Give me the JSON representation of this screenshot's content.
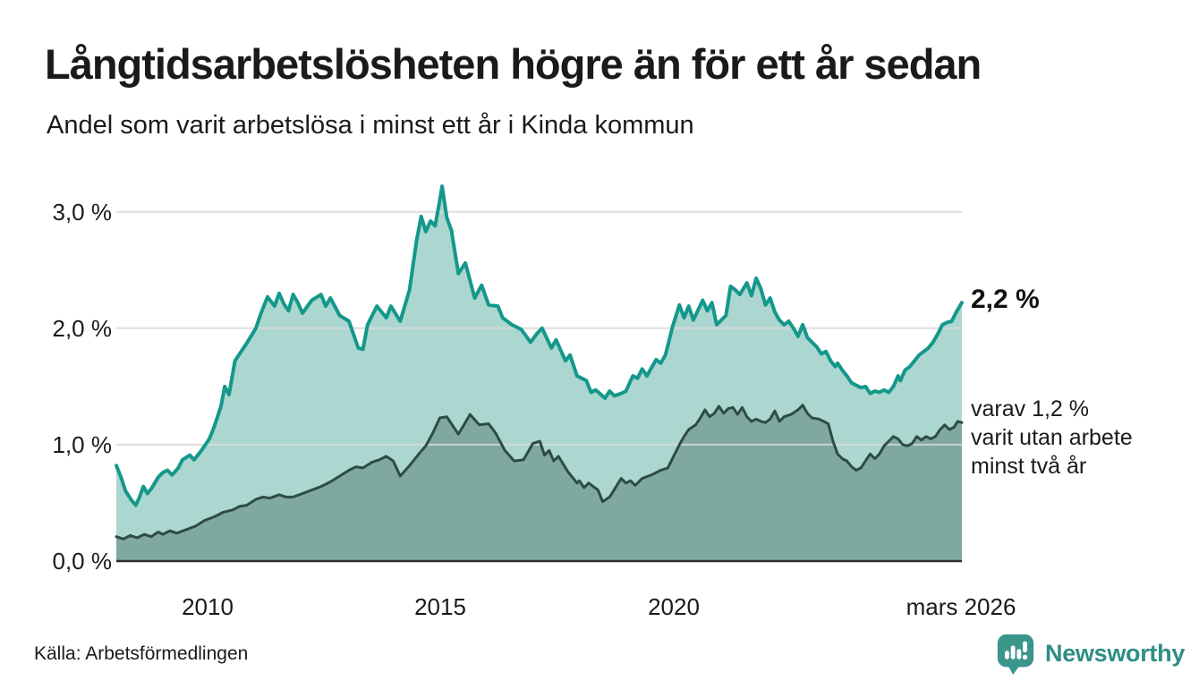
{
  "header": {
    "title": "Långtidsarbetslösheten högre än för ett år sedan",
    "subtitle": "Andel som varit arbetslösa i minst ett år i Kinda kommun"
  },
  "chart_data": {
    "type": "area",
    "title": "Långtidsarbetslösheten högre än för ett år sedan",
    "subtitle": "Andel som varit arbetslösa i minst ett år i Kinda kommun",
    "unit": "%",
    "grid": true,
    "x_axis": {
      "range": [
        2008.0,
        2026.17
      ],
      "ticks": [
        {
          "label": "2010",
          "year": 2010
        },
        {
          "label": "2015",
          "year": 2015
        },
        {
          "label": "2020",
          "year": 2020
        },
        {
          "label": "mars 2026",
          "year": 2026.17
        }
      ]
    },
    "y_axis": {
      "range": [
        0,
        3.4
      ],
      "ticks": [
        {
          "label": "3,0 %",
          "value": 3.0
        },
        {
          "label": "2,0 %",
          "value": 2.0
        },
        {
          "label": "1,0 %",
          "value": 1.0
        },
        {
          "label": "0,0 %",
          "value": 0.0
        }
      ]
    },
    "series": [
      {
        "name": "Andel arbetslösa minst ett år",
        "line_color": "#14988b",
        "fill_color": "#abd7d0",
        "line_width": 4,
        "points": [
          [
            2008.0,
            0.82
          ],
          [
            2008.1,
            0.72
          ],
          [
            2008.2,
            0.6
          ],
          [
            2008.33,
            0.52
          ],
          [
            2008.42,
            0.48
          ],
          [
            2008.5,
            0.55
          ],
          [
            2008.58,
            0.64
          ],
          [
            2008.67,
            0.58
          ],
          [
            2008.75,
            0.62
          ],
          [
            2008.9,
            0.72
          ],
          [
            2009.0,
            0.76
          ],
          [
            2009.1,
            0.78
          ],
          [
            2009.2,
            0.74
          ],
          [
            2009.33,
            0.8
          ],
          [
            2009.42,
            0.87
          ],
          [
            2009.58,
            0.91
          ],
          [
            2009.67,
            0.87
          ],
          [
            2009.83,
            0.95
          ],
          [
            2010.0,
            1.05
          ],
          [
            2010.1,
            1.15
          ],
          [
            2010.25,
            1.33
          ],
          [
            2010.33,
            1.5
          ],
          [
            2010.42,
            1.43
          ],
          [
            2010.55,
            1.72
          ],
          [
            2010.65,
            1.78
          ],
          [
            2010.8,
            1.87
          ],
          [
            2011.0,
            2.0
          ],
          [
            2011.1,
            2.12
          ],
          [
            2011.25,
            2.27
          ],
          [
            2011.4,
            2.19
          ],
          [
            2011.5,
            2.3
          ],
          [
            2011.6,
            2.21
          ],
          [
            2011.7,
            2.15
          ],
          [
            2011.8,
            2.29
          ],
          [
            2011.9,
            2.22
          ],
          [
            2012.0,
            2.13
          ],
          [
            2012.2,
            2.24
          ],
          [
            2012.4,
            2.29
          ],
          [
            2012.5,
            2.19
          ],
          [
            2012.6,
            2.26
          ],
          [
            2012.8,
            2.11
          ],
          [
            2013.0,
            2.06
          ],
          [
            2013.2,
            1.83
          ],
          [
            2013.3,
            1.82
          ],
          [
            2013.4,
            2.03
          ],
          [
            2013.6,
            2.19
          ],
          [
            2013.8,
            2.09
          ],
          [
            2013.9,
            2.19
          ],
          [
            2014.1,
            2.06
          ],
          [
            2014.3,
            2.33
          ],
          [
            2014.45,
            2.75
          ],
          [
            2014.55,
            2.96
          ],
          [
            2014.65,
            2.83
          ],
          [
            2014.75,
            2.92
          ],
          [
            2014.85,
            2.88
          ],
          [
            2014.95,
            3.1
          ],
          [
            2015.0,
            3.22
          ],
          [
            2015.1,
            2.95
          ],
          [
            2015.2,
            2.84
          ],
          [
            2015.35,
            2.47
          ],
          [
            2015.5,
            2.56
          ],
          [
            2015.7,
            2.26
          ],
          [
            2015.85,
            2.37
          ],
          [
            2016.0,
            2.2
          ],
          [
            2016.2,
            2.19
          ],
          [
            2016.3,
            2.09
          ],
          [
            2016.5,
            2.03
          ],
          [
            2016.7,
            1.99
          ],
          [
            2016.9,
            1.88
          ],
          [
            2017.05,
            1.96
          ],
          [
            2017.15,
            2.0
          ],
          [
            2017.35,
            1.83
          ],
          [
            2017.45,
            1.9
          ],
          [
            2017.65,
            1.72
          ],
          [
            2017.75,
            1.77
          ],
          [
            2017.9,
            1.59
          ],
          [
            2018.1,
            1.55
          ],
          [
            2018.2,
            1.45
          ],
          [
            2018.3,
            1.47
          ],
          [
            2018.5,
            1.4
          ],
          [
            2018.6,
            1.46
          ],
          [
            2018.7,
            1.42
          ],
          [
            2018.85,
            1.44
          ],
          [
            2018.95,
            1.46
          ],
          [
            2019.1,
            1.59
          ],
          [
            2019.2,
            1.57
          ],
          [
            2019.3,
            1.65
          ],
          [
            2019.4,
            1.59
          ],
          [
            2019.6,
            1.73
          ],
          [
            2019.7,
            1.7
          ],
          [
            2019.8,
            1.77
          ],
          [
            2019.95,
            2.01
          ],
          [
            2020.1,
            2.2
          ],
          [
            2020.2,
            2.09
          ],
          [
            2020.3,
            2.19
          ],
          [
            2020.4,
            2.07
          ],
          [
            2020.6,
            2.24
          ],
          [
            2020.7,
            2.15
          ],
          [
            2020.8,
            2.22
          ],
          [
            2020.9,
            2.03
          ],
          [
            2021.1,
            2.11
          ],
          [
            2021.2,
            2.36
          ],
          [
            2021.3,
            2.33
          ],
          [
            2021.4,
            2.29
          ],
          [
            2021.55,
            2.39
          ],
          [
            2021.65,
            2.28
          ],
          [
            2021.75,
            2.43
          ],
          [
            2021.85,
            2.34
          ],
          [
            2021.95,
            2.2
          ],
          [
            2022.05,
            2.26
          ],
          [
            2022.15,
            2.14
          ],
          [
            2022.25,
            2.07
          ],
          [
            2022.35,
            2.03
          ],
          [
            2022.45,
            2.06
          ],
          [
            2022.55,
            2.0
          ],
          [
            2022.65,
            1.93
          ],
          [
            2022.75,
            2.03
          ],
          [
            2022.85,
            1.92
          ],
          [
            2022.95,
            1.88
          ],
          [
            2023.05,
            1.84
          ],
          [
            2023.15,
            1.78
          ],
          [
            2023.25,
            1.8
          ],
          [
            2023.35,
            1.72
          ],
          [
            2023.45,
            1.67
          ],
          [
            2023.5,
            1.7
          ],
          [
            2023.6,
            1.64
          ],
          [
            2023.7,
            1.59
          ],
          [
            2023.8,
            1.53
          ],
          [
            2023.9,
            1.51
          ],
          [
            2024.0,
            1.49
          ],
          [
            2024.1,
            1.5
          ],
          [
            2024.2,
            1.44
          ],
          [
            2024.3,
            1.46
          ],
          [
            2024.4,
            1.45
          ],
          [
            2024.5,
            1.47
          ],
          [
            2024.6,
            1.45
          ],
          [
            2024.7,
            1.5
          ],
          [
            2024.8,
            1.59
          ],
          [
            2024.85,
            1.55
          ],
          [
            2024.95,
            1.64
          ],
          [
            2025.05,
            1.67
          ],
          [
            2025.15,
            1.72
          ],
          [
            2025.25,
            1.77
          ],
          [
            2025.35,
            1.8
          ],
          [
            2025.45,
            1.83
          ],
          [
            2025.55,
            1.88
          ],
          [
            2025.65,
            1.95
          ],
          [
            2025.75,
            2.03
          ],
          [
            2025.85,
            2.05
          ],
          [
            2025.95,
            2.06
          ],
          [
            2026.05,
            2.14
          ],
          [
            2026.17,
            2.22
          ]
        ]
      },
      {
        "name": "Andel utan arbete minst två år",
        "line_color": "#2e4b46",
        "fill_color": "#7fa9a0",
        "line_width": 3,
        "points": [
          [
            2008.0,
            0.21
          ],
          [
            2008.15,
            0.19
          ],
          [
            2008.3,
            0.22
          ],
          [
            2008.45,
            0.2
          ],
          [
            2008.6,
            0.23
          ],
          [
            2008.75,
            0.21
          ],
          [
            2008.9,
            0.25
          ],
          [
            2009.0,
            0.23
          ],
          [
            2009.15,
            0.26
          ],
          [
            2009.3,
            0.24
          ],
          [
            2009.5,
            0.27
          ],
          [
            2009.7,
            0.3
          ],
          [
            2009.9,
            0.35
          ],
          [
            2010.1,
            0.38
          ],
          [
            2010.3,
            0.42
          ],
          [
            2010.5,
            0.44
          ],
          [
            2010.65,
            0.47
          ],
          [
            2010.8,
            0.48
          ],
          [
            2011.0,
            0.53
          ],
          [
            2011.15,
            0.55
          ],
          [
            2011.3,
            0.54
          ],
          [
            2011.5,
            0.57
          ],
          [
            2011.65,
            0.55
          ],
          [
            2011.8,
            0.55
          ],
          [
            2012.0,
            0.58
          ],
          [
            2012.2,
            0.61
          ],
          [
            2012.4,
            0.64
          ],
          [
            2012.6,
            0.68
          ],
          [
            2012.8,
            0.73
          ],
          [
            2013.0,
            0.78
          ],
          [
            2013.15,
            0.81
          ],
          [
            2013.3,
            0.8
          ],
          [
            2013.5,
            0.85
          ],
          [
            2013.65,
            0.87
          ],
          [
            2013.8,
            0.9
          ],
          [
            2013.95,
            0.86
          ],
          [
            2014.1,
            0.73
          ],
          [
            2014.3,
            0.82
          ],
          [
            2014.5,
            0.92
          ],
          [
            2014.65,
            0.99
          ],
          [
            2014.8,
            1.1
          ],
          [
            2014.95,
            1.23
          ],
          [
            2015.1,
            1.24
          ],
          [
            2015.35,
            1.09
          ],
          [
            2015.6,
            1.26
          ],
          [
            2015.8,
            1.17
          ],
          [
            2016.0,
            1.18
          ],
          [
            2016.15,
            1.1
          ],
          [
            2016.35,
            0.95
          ],
          [
            2016.55,
            0.86
          ],
          [
            2016.75,
            0.87
          ],
          [
            2016.95,
            1.01
          ],
          [
            2017.1,
            1.03
          ],
          [
            2017.2,
            0.91
          ],
          [
            2017.3,
            0.95
          ],
          [
            2017.4,
            0.86
          ],
          [
            2017.5,
            0.9
          ],
          [
            2017.7,
            0.77
          ],
          [
            2017.9,
            0.67
          ],
          [
            2017.95,
            0.69
          ],
          [
            2018.05,
            0.63
          ],
          [
            2018.15,
            0.67
          ],
          [
            2018.35,
            0.61
          ],
          [
            2018.45,
            0.51
          ],
          [
            2018.6,
            0.55
          ],
          [
            2018.85,
            0.71
          ],
          [
            2018.95,
            0.67
          ],
          [
            2019.05,
            0.69
          ],
          [
            2019.15,
            0.65
          ],
          [
            2019.3,
            0.71
          ],
          [
            2019.5,
            0.74
          ],
          [
            2019.7,
            0.78
          ],
          [
            2019.85,
            0.8
          ],
          [
            2020.0,
            0.92
          ],
          [
            2020.1,
            1.0
          ],
          [
            2020.2,
            1.07
          ],
          [
            2020.3,
            1.13
          ],
          [
            2020.45,
            1.17
          ],
          [
            2020.55,
            1.23
          ],
          [
            2020.65,
            1.3
          ],
          [
            2020.75,
            1.24
          ],
          [
            2020.85,
            1.27
          ],
          [
            2020.95,
            1.33
          ],
          [
            2021.05,
            1.27
          ],
          [
            2021.15,
            1.31
          ],
          [
            2021.25,
            1.32
          ],
          [
            2021.35,
            1.26
          ],
          [
            2021.45,
            1.32
          ],
          [
            2021.55,
            1.24
          ],
          [
            2021.65,
            1.2
          ],
          [
            2021.75,
            1.22
          ],
          [
            2021.85,
            1.2
          ],
          [
            2021.95,
            1.19
          ],
          [
            2022.05,
            1.22
          ],
          [
            2022.15,
            1.29
          ],
          [
            2022.25,
            1.2
          ],
          [
            2022.35,
            1.24
          ],
          [
            2022.5,
            1.26
          ],
          [
            2022.65,
            1.3
          ],
          [
            2022.75,
            1.34
          ],
          [
            2022.85,
            1.27
          ],
          [
            2022.95,
            1.23
          ],
          [
            2023.1,
            1.22
          ],
          [
            2023.2,
            1.2
          ],
          [
            2023.3,
            1.18
          ],
          [
            2023.4,
            1.03
          ],
          [
            2023.5,
            0.92
          ],
          [
            2023.6,
            0.88
          ],
          [
            2023.7,
            0.86
          ],
          [
            2023.8,
            0.81
          ],
          [
            2023.9,
            0.78
          ],
          [
            2024.0,
            0.8
          ],
          [
            2024.1,
            0.86
          ],
          [
            2024.2,
            0.92
          ],
          [
            2024.3,
            0.88
          ],
          [
            2024.4,
            0.92
          ],
          [
            2024.5,
            0.99
          ],
          [
            2024.6,
            1.03
          ],
          [
            2024.7,
            1.07
          ],
          [
            2024.8,
            1.05
          ],
          [
            2024.9,
            1.0
          ],
          [
            2025.0,
            0.99
          ],
          [
            2025.1,
            1.01
          ],
          [
            2025.2,
            1.07
          ],
          [
            2025.3,
            1.04
          ],
          [
            2025.4,
            1.07
          ],
          [
            2025.5,
            1.05
          ],
          [
            2025.6,
            1.07
          ],
          [
            2025.7,
            1.13
          ],
          [
            2025.8,
            1.17
          ],
          [
            2025.9,
            1.13
          ],
          [
            2026.0,
            1.15
          ],
          [
            2026.08,
            1.2
          ],
          [
            2026.17,
            1.19
          ]
        ]
      }
    ],
    "annotations": {
      "latest_value": "2,2 %",
      "secondary_lines": [
        "varav 1,2 %",
        "varit utan arbete",
        "minst två år"
      ]
    },
    "legend_position": "none"
  },
  "footer": {
    "source": "Källa: Arbetsförmedlingen",
    "brand": "Newsworthy"
  },
  "colors": {
    "background": "#ffffff",
    "gridline": "#d9d9d9",
    "axis_line": "#2f2f2f",
    "series1_line": "#14988b",
    "series1_fill": "#abd7d0",
    "series2_line": "#2e4b46",
    "series2_fill": "#7fa9a0",
    "brand_teal": "#3a958b",
    "brand_text": "#2f8e85"
  }
}
